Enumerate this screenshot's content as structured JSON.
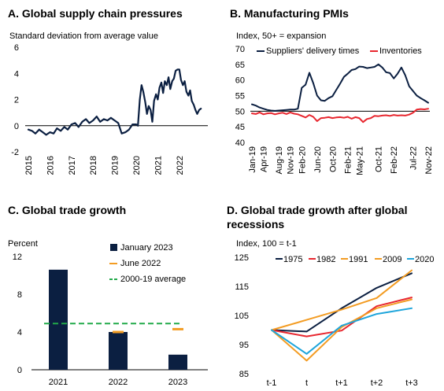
{
  "colors": {
    "navy": "#0b1f41",
    "red": "#e8272f",
    "orange": "#f39c23",
    "green": "#22aa4a",
    "blue": "#1ea5db"
  },
  "chart_data": [
    {
      "id": "A",
      "type": "line",
      "title": "A. Global supply chain pressures",
      "ylabel": "Standard deviation from average value",
      "ylim": [
        -2,
        6
      ],
      "yticks": [
        -2,
        0,
        2,
        4,
        6
      ],
      "xlim": [
        2015,
        2023.25
      ],
      "xticks": [
        "2015",
        "2016",
        "2017",
        "2018",
        "2019",
        "2020",
        "2021",
        "2022"
      ],
      "zero_line": true,
      "series": [
        {
          "color": "navy",
          "x": [
            2015.0,
            2015.17,
            2015.33,
            2015.5,
            2015.67,
            2015.83,
            2016.0,
            2016.17,
            2016.33,
            2016.5,
            2016.67,
            2016.83,
            2017.0,
            2017.17,
            2017.33,
            2017.5,
            2017.67,
            2017.83,
            2018.0,
            2018.17,
            2018.33,
            2018.5,
            2018.67,
            2018.83,
            2019.0,
            2019.17,
            2019.33,
            2019.5,
            2019.67,
            2019.83,
            2020.0,
            2020.08,
            2020.17,
            2020.25,
            2020.33,
            2020.42,
            2020.5,
            2020.58,
            2020.67,
            2020.75,
            2020.83,
            2020.92,
            2021.0,
            2021.08,
            2021.17,
            2021.25,
            2021.33,
            2021.42,
            2021.5,
            2021.58,
            2021.67,
            2021.75,
            2021.83,
            2021.92,
            2022.0,
            2022.08,
            2022.17,
            2022.25,
            2022.33,
            2022.42,
            2022.5,
            2022.58,
            2022.67,
            2022.75,
            2022.83,
            2022.92,
            2023.0
          ],
          "y": [
            -0.3,
            -0.4,
            -0.6,
            -0.3,
            -0.5,
            -0.7,
            -0.5,
            -0.6,
            -0.2,
            -0.4,
            -0.1,
            -0.3,
            0.1,
            0.2,
            -0.1,
            0.3,
            0.5,
            0.2,
            0.4,
            0.7,
            0.3,
            0.5,
            0.4,
            0.6,
            0.4,
            0.2,
            -0.6,
            -0.5,
            -0.3,
            0.1,
            0.1,
            0.0,
            2.0,
            3.1,
            2.6,
            1.8,
            0.9,
            1.5,
            1.2,
            0.3,
            1.9,
            2.4,
            2.0,
            2.9,
            3.3,
            2.5,
            3.4,
            3.1,
            3.7,
            2.8,
            3.4,
            3.6,
            4.2,
            4.3,
            4.3,
            3.5,
            3.1,
            3.4,
            2.6,
            2.3,
            2.7,
            1.9,
            1.6,
            1.2,
            0.9,
            1.2,
            1.3
          ]
        }
      ]
    },
    {
      "id": "B",
      "type": "line",
      "title": "B. Manufacturing PMIs",
      "ylabel": "Index, 50+ = expansion",
      "ylim": [
        40,
        70
      ],
      "yticks": [
        40,
        45,
        50,
        55,
        60,
        65,
        70
      ],
      "reference_line": 50,
      "categories": [
        "Jan-19",
        "Feb-19",
        "Mar-19",
        "Apr-19",
        "May-19",
        "Jun-19",
        "Jul-19",
        "Aug-19",
        "Sep-19",
        "Oct-19",
        "Nov-19",
        "Dec-19",
        "Jan-20",
        "Feb-20",
        "Mar-20",
        "Apr-20",
        "May-20",
        "Jun-20",
        "Jul-20",
        "Aug-20",
        "Sep-20",
        "Oct-20",
        "Nov-20",
        "Dec-20",
        "Jan-21",
        "Feb-21",
        "Mar-21",
        "Apr-21",
        "May-21",
        "Jun-21",
        "Jul-21",
        "Aug-21",
        "Sep-21",
        "Oct-21",
        "Nov-21",
        "Dec-21",
        "Jan-22",
        "Feb-22",
        "Mar-22",
        "Apr-22",
        "May-22",
        "Jun-22",
        "Jul-22",
        "Aug-22",
        "Sep-22",
        "Oct-22",
        "Nov-22"
      ],
      "xticks": [
        "Jan-19",
        "Apr-19",
        "Aug-19",
        "Nov-19",
        "Feb-20",
        "Jun-20",
        "Oct-20",
        "Feb-21",
        "May-21",
        "Oct-21",
        "Feb-22",
        "Jul-22",
        "Nov-22"
      ],
      "legend": [
        "Suppliers' delivery times",
        "Inventories"
      ],
      "series": [
        {
          "name": "Suppliers' delivery times",
          "color": "navy",
          "values": [
            52.2,
            51.8,
            51.2,
            50.8,
            50.4,
            50.2,
            50.1,
            50.2,
            50.3,
            50.4,
            50.5,
            50.5,
            50.8,
            57.5,
            58.5,
            62.3,
            59.0,
            55.0,
            53.5,
            53.3,
            54.2,
            54.8,
            56.8,
            58.8,
            61.0,
            62.0,
            63.2,
            63.5,
            64.3,
            64.2,
            63.8,
            64.0,
            64.2,
            65.0,
            64.0,
            62.5,
            62.2,
            60.5,
            62.0,
            64.0,
            61.5,
            58.0,
            56.5,
            55.0,
            54.2,
            53.5,
            52.7
          ]
        },
        {
          "name": "Inventories",
          "color": "red",
          "values": [
            49.3,
            49.1,
            49.6,
            49.0,
            49.3,
            49.4,
            49.0,
            49.3,
            49.5,
            49.1,
            49.6,
            49.2,
            49.0,
            48.5,
            48.0,
            48.8,
            48.2,
            46.8,
            47.8,
            47.9,
            48.1,
            47.8,
            48.0,
            48.1,
            47.9,
            48.2,
            47.6,
            48.1,
            47.8,
            46.5,
            47.5,
            47.8,
            48.5,
            48.4,
            48.6,
            48.7,
            48.5,
            48.8,
            48.6,
            48.7,
            48.6,
            48.9,
            49.5,
            50.5,
            50.7,
            50.6,
            50.8
          ]
        }
      ]
    },
    {
      "id": "C",
      "type": "bar",
      "title": "C. Global trade growth",
      "ylabel": "Percent",
      "ylim": [
        0,
        12
      ],
      "yticks": [
        0,
        4,
        8,
        12
      ],
      "categories": [
        "2021",
        "2022",
        "2023"
      ],
      "legend": [
        "January 2023",
        "June 2022",
        "2000-19 average"
      ],
      "series": [
        {
          "name": "January 2023",
          "type": "bar",
          "color": "navy",
          "values": [
            10.6,
            4.0,
            1.6
          ]
        },
        {
          "name": "June 2022",
          "type": "marker",
          "color": "orange",
          "values": [
            null,
            4.0,
            4.3
          ]
        },
        {
          "name": "2000-19 average",
          "type": "dashed-line",
          "color": "green",
          "value": 4.9
        }
      ]
    },
    {
      "id": "D",
      "type": "line",
      "title": "D. Global trade growth after global recessions",
      "ylabel": "Index, 100 = t-1",
      "ylim": [
        85,
        125
      ],
      "yticks": [
        85,
        95,
        105,
        115,
        125
      ],
      "categories": [
        "t-1",
        "t",
        "t+1",
        "t+2",
        "t+3"
      ],
      "legend": [
        "1975",
        "1982",
        "1991",
        "2009",
        "2020"
      ],
      "series": [
        {
          "name": "1975",
          "color": "navy",
          "values": [
            100,
            99.5,
            107.5,
            114.5,
            119.5
          ]
        },
        {
          "name": "1982",
          "color": "red",
          "values": [
            100,
            97.8,
            99.8,
            108.2,
            111.2
          ]
        },
        {
          "name": "1991",
          "color": "orange",
          "values": [
            100,
            103.5,
            107.0,
            111.0,
            120.5
          ]
        },
        {
          "name": "2009",
          "color": "orange",
          "values": [
            100,
            89.5,
            101.0,
            107.5,
            110.5
          ]
        },
        {
          "name": "2020",
          "color": "blue",
          "values": [
            100,
            91.8,
            101.5,
            105.5,
            107.5
          ]
        }
      ]
    }
  ]
}
